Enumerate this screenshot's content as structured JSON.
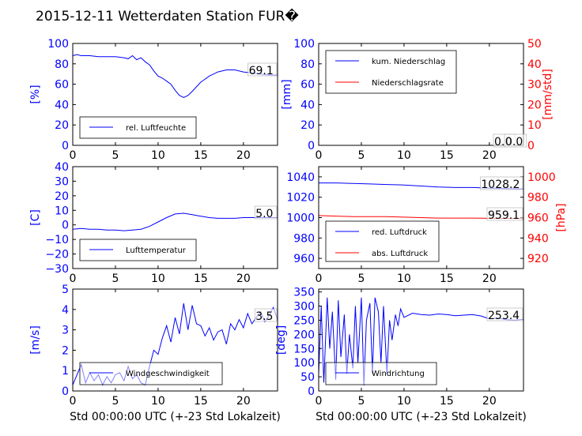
{
  "title": "2015-12-11 Wetterdaten Station FUR�",
  "colors": {
    "blue": "#0000ff",
    "red": "#ff0000",
    "darkred": "#8b0000"
  },
  "chart_data": [
    {
      "type": "line",
      "ylabel": "[%]",
      "xlim": [
        0,
        24
      ],
      "ylim": [
        0,
        100
      ],
      "x_ticks": [
        0,
        5,
        10,
        15,
        20
      ],
      "y_ticks": [
        0,
        20,
        40,
        60,
        80,
        100
      ],
      "legend": [
        "rel. Luftfeuchte"
      ],
      "annotation": "69.1",
      "series": [
        {
          "name": "rel. Luftfeuchte",
          "color": "#0000ff",
          "x": [
            0,
            0.5,
            1,
            2,
            3,
            4,
            5,
            6,
            6.5,
            7,
            7.5,
            8,
            8.5,
            9,
            9.5,
            10,
            10.5,
            11,
            11.5,
            12,
            12.5,
            13,
            13.5,
            14,
            15,
            16,
            17,
            18,
            19,
            20,
            21,
            22,
            23,
            24
          ],
          "y": [
            88,
            89,
            88,
            88,
            87,
            87,
            87,
            86,
            85,
            88,
            84,
            86,
            82,
            79,
            73,
            68,
            66,
            63,
            60,
            54,
            49,
            47,
            49,
            53,
            62,
            68,
            72,
            74,
            74,
            72,
            71,
            70,
            69,
            69
          ]
        }
      ]
    },
    {
      "type": "line",
      "ylabel": "[mm]",
      "y2label": "[mm/std]",
      "xlim": [
        0,
        24
      ],
      "ylim": [
        0,
        100
      ],
      "y2lim": [
        0,
        50
      ],
      "x_ticks": [
        0,
        5,
        10,
        15,
        20
      ],
      "y_ticks": [
        0,
        20,
        40,
        60,
        80,
        100
      ],
      "y2_ticks": [
        0,
        10,
        20,
        30,
        40,
        50
      ],
      "legend": [
        "kum. Niederschlag",
        "Niederschlagsrate"
      ],
      "annotations": [
        "0.0",
        "0.0"
      ],
      "series": [
        {
          "name": "kum. Niederschlag",
          "color": "#0000ff",
          "x": [
            0,
            24
          ],
          "y": [
            0,
            0
          ]
        },
        {
          "name": "Niederschlagsrate",
          "color": "#ff0000",
          "axis": "right",
          "x": [
            0,
            24
          ],
          "y": [
            0,
            0
          ]
        }
      ]
    },
    {
      "type": "line",
      "ylabel": "[C]",
      "xlim": [
        0,
        24
      ],
      "ylim": [
        -30,
        40
      ],
      "x_ticks": [
        0,
        5,
        10,
        15,
        20
      ],
      "y_ticks": [
        -30,
        -20,
        -10,
        0,
        10,
        20,
        30,
        40
      ],
      "legend": [
        "Lufttemperatur"
      ],
      "annotation": "5.0",
      "series": [
        {
          "name": "Lufttemperatur",
          "color": "#0000ff",
          "x": [
            0,
            1,
            2,
            3,
            4,
            5,
            6,
            7,
            8,
            9,
            10,
            11,
            12,
            13,
            14,
            15,
            16,
            17,
            18,
            19,
            20,
            21,
            22,
            23,
            24
          ],
          "y": [
            -3,
            -2.5,
            -3,
            -3,
            -3.5,
            -3.5,
            -4,
            -3.5,
            -3,
            -1,
            2,
            5,
            7.5,
            8,
            7,
            6,
            5,
            4.5,
            4.5,
            4.5,
            5,
            5,
            5,
            5,
            5
          ]
        }
      ]
    },
    {
      "type": "line",
      "ylabel": "",
      "y2label": "[hPa]",
      "xlim": [
        0,
        24
      ],
      "ylim": [
        950,
        1050
      ],
      "y2lim": [
        910,
        1010
      ],
      "x_ticks": [
        0,
        5,
        10,
        15,
        20
      ],
      "y_ticks": [
        960,
        980,
        1000,
        1020,
        1040
      ],
      "y2_ticks": [
        920,
        940,
        960,
        980,
        1000
      ],
      "legend": [
        "red. Luftdruck",
        "abs. Luftdruck"
      ],
      "annotations": [
        "1028.2",
        "959.1"
      ],
      "series": [
        {
          "name": "red. Luftdruck",
          "color": "#0000ff",
          "x": [
            0,
            2,
            4,
            6,
            8,
            10,
            12,
            14,
            16,
            18,
            20,
            22,
            24
          ],
          "y": [
            1034,
            1034,
            1033.5,
            1033,
            1032.5,
            1032,
            1031,
            1030,
            1029.5,
            1029.5,
            1029,
            1028.5,
            1028.2
          ]
        },
        {
          "name": "abs. Luftdruck",
          "color": "#ff0000",
          "axis": "right",
          "x": [
            0,
            2,
            4,
            6,
            8,
            10,
            12,
            14,
            16,
            18,
            20,
            22,
            24
          ],
          "y": [
            962,
            961.5,
            961,
            961,
            961,
            960.5,
            960,
            959.5,
            959.5,
            959.5,
            959.3,
            959.2,
            959.1
          ]
        }
      ]
    },
    {
      "type": "line",
      "ylabel": "[m/s]",
      "xlabel": "Std 00:00:00 UTC (+-23 Std Lokalzeit)",
      "xlim": [
        0,
        24
      ],
      "ylim": [
        0,
        5
      ],
      "x_ticks": [
        0,
        5,
        10,
        15,
        20
      ],
      "y_ticks": [
        0,
        1,
        2,
        3,
        4,
        5
      ],
      "legend": [
        "Windgeschwindigkeit"
      ],
      "annotation": "3.5",
      "series": [
        {
          "name": "Windgeschwindigkeit",
          "color": "#0000ff",
          "x": [
            0,
            0.5,
            1,
            1.5,
            2,
            2.5,
            3,
            3.5,
            4,
            4.5,
            5,
            5.5,
            6,
            6.5,
            7,
            7.5,
            8,
            8.5,
            9,
            9.5,
            10,
            10.5,
            11,
            11.5,
            12,
            12.5,
            13,
            13.5,
            14,
            14.5,
            15,
            15.5,
            16,
            16.5,
            17,
            17.5,
            18,
            18.5,
            19,
            19.5,
            20,
            20.5,
            21,
            21.5,
            22,
            22.5,
            23,
            23.5,
            24
          ],
          "y": [
            0.3,
            0.8,
            1.3,
            0.4,
            0.9,
            0.5,
            0.8,
            0.3,
            0.7,
            0.4,
            0.8,
            0.9,
            0.5,
            1.2,
            0.6,
            0.8,
            0.4,
            0.3,
            1.2,
            2.0,
            1.8,
            2.6,
            3.2,
            2.4,
            3.6,
            2.8,
            4.3,
            3.0,
            4.2,
            3.3,
            3.2,
            2.7,
            3.1,
            2.5,
            2.9,
            3.0,
            2.3,
            3.3,
            3.0,
            3.5,
            3.1,
            3.8,
            3.3,
            3.6,
            3.9,
            3.4,
            3.7,
            4.1,
            3.5
          ]
        }
      ]
    },
    {
      "type": "line",
      "ylabel": "[deg]",
      "xlabel": "Std 00:00:00 UTC (+-23 Std Lokalzeit)",
      "xlim": [
        0,
        24
      ],
      "ylim": [
        0,
        360
      ],
      "x_ticks": [
        0,
        5,
        10,
        15,
        20
      ],
      "y_ticks": [
        0,
        50,
        100,
        150,
        200,
        250,
        300,
        350
      ],
      "legend": [
        "Windrichtung"
      ],
      "annotation": "253.4",
      "series": [
        {
          "name": "Windrichtung",
          "color": "#0000ff",
          "x": [
            0,
            0.3,
            0.6,
            1,
            1.3,
            1.6,
            2,
            2.3,
            2.6,
            3,
            3.3,
            3.6,
            4,
            4.3,
            4.6,
            5,
            5.3,
            5.6,
            6,
            6.3,
            6.6,
            7,
            7.3,
            7.6,
            8,
            8.3,
            8.6,
            9,
            9.3,
            9.6,
            10,
            11,
            12,
            13,
            14,
            15,
            16,
            17,
            18,
            19,
            20,
            21,
            22,
            23,
            24
          ],
          "y": [
            60,
            300,
            30,
            330,
            150,
            280,
            40,
            320,
            120,
            270,
            60,
            200,
            80,
            300,
            100,
            330,
            20,
            250,
            310,
            60,
            330,
            280,
            100,
            300,
            60,
            250,
            180,
            270,
            230,
            290,
            260,
            275,
            270,
            268,
            272,
            270,
            266,
            268,
            270,
            265,
            255,
            258,
            252,
            250,
            253
          ]
        }
      ]
    }
  ]
}
